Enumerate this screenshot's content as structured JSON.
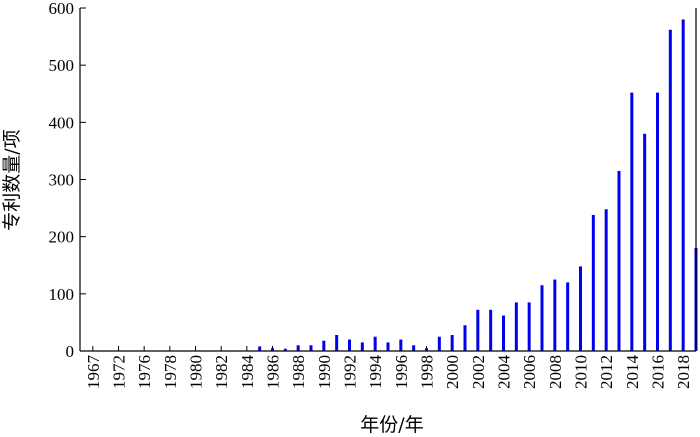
{
  "chart_data": {
    "type": "bar",
    "xlabel": "年份/年",
    "ylabel": "专利数量/项",
    "ylim": [
      0,
      600
    ],
    "yticks": [
      0,
      100,
      200,
      300,
      400,
      500,
      600
    ],
    "x_tick_labels": [
      "1967",
      "1972",
      "1976",
      "1978",
      "1980",
      "1982",
      "1984",
      "1986",
      "1988",
      "1990",
      "1992",
      "1994",
      "1996",
      "1998",
      "2000",
      "2002",
      "2004",
      "2006",
      "2008",
      "2010",
      "2012",
      "2014",
      "2016",
      "2018"
    ],
    "bar_color": "#0000ee",
    "bars": [
      {
        "year": 1985,
        "value": 8
      },
      {
        "year": 1986,
        "value": 5
      },
      {
        "year": 1987,
        "value": 4
      },
      {
        "year": 1988,
        "value": 10
      },
      {
        "year": 1989,
        "value": 10
      },
      {
        "year": 1990,
        "value": 18
      },
      {
        "year": 1991,
        "value": 28
      },
      {
        "year": 1992,
        "value": 20
      },
      {
        "year": 1993,
        "value": 15
      },
      {
        "year": 1994,
        "value": 25
      },
      {
        "year": 1995,
        "value": 15
      },
      {
        "year": 1996,
        "value": 20
      },
      {
        "year": 1997,
        "value": 10
      },
      {
        "year": 1998,
        "value": 5
      },
      {
        "year": 1999,
        "value": 25
      },
      {
        "year": 2000,
        "value": 28
      },
      {
        "year": 2001,
        "value": 45
      },
      {
        "year": 2002,
        "value": 72
      },
      {
        "year": 2003,
        "value": 72
      },
      {
        "year": 2004,
        "value": 62
      },
      {
        "year": 2005,
        "value": 85
      },
      {
        "year": 2006,
        "value": 85
      },
      {
        "year": 2007,
        "value": 115
      },
      {
        "year": 2008,
        "value": 125
      },
      {
        "year": 2009,
        "value": 120
      },
      {
        "year": 2010,
        "value": 148
      },
      {
        "year": 2011,
        "value": 238
      },
      {
        "year": 2012,
        "value": 248
      },
      {
        "year": 2013,
        "value": 315
      },
      {
        "year": 2014,
        "value": 452
      },
      {
        "year": 2015,
        "value": 380
      },
      {
        "year": 2016,
        "value": 452
      },
      {
        "year": 2017,
        "value": 562
      },
      {
        "year": 2018,
        "value": 580
      },
      {
        "year": 2019,
        "value": 180
      }
    ]
  }
}
